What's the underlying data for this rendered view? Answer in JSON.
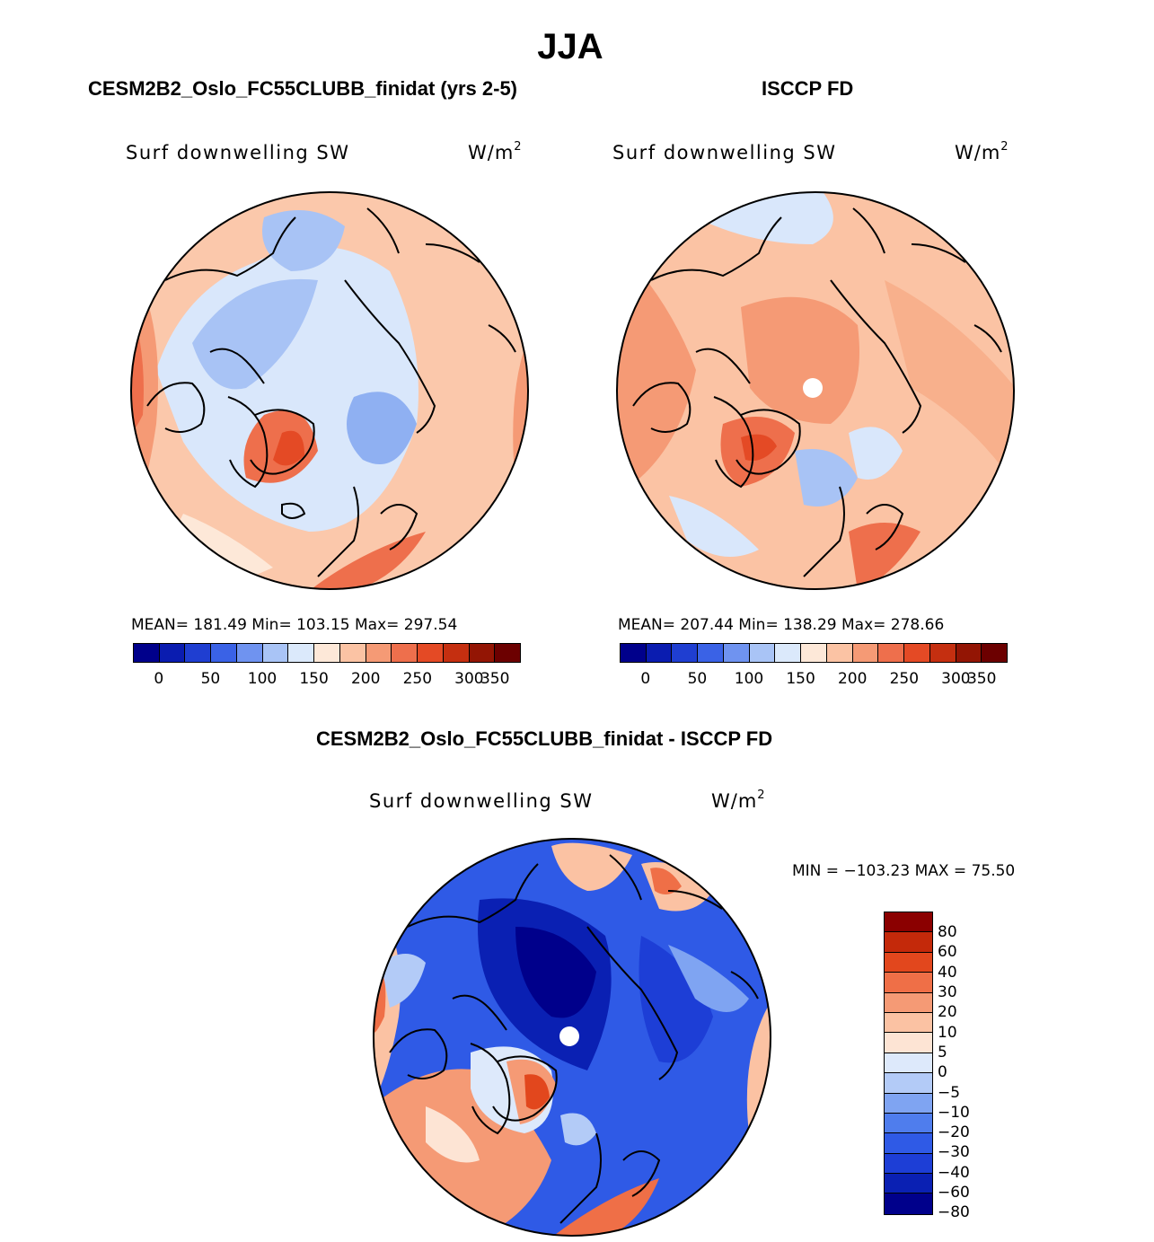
{
  "figure": {
    "title": "JJA",
    "colors": {
      "levels_palette": [
        "#00008b",
        "#0a1cb0",
        "#1f3ed1",
        "#3a62e6",
        "#6f93f0",
        "#a9c4f6",
        "#dbe9fb",
        "#fde8d8",
        "#fbc3a4",
        "#f59a75",
        "#ee6f4c",
        "#e44a25",
        "#c52f10",
        "#931504",
        "#6c0000"
      ],
      "diff_palette": [
        "#00008b",
        "#0a20b3",
        "#1d3ed6",
        "#2f5ae6",
        "#4f7ded",
        "#7fa4f2",
        "#b3cbf7",
        "#dde9fb",
        "#fde4d4",
        "#fbc2a3",
        "#f59a75",
        "#ef6f47",
        "#e2471d",
        "#c4290a",
        "#8b0000"
      ]
    },
    "panels": [
      {
        "title": "CESM2B2_Oslo_FC55CLUBB_finidat (yrs 2-5)",
        "variable": "Surf downwelling SW",
        "units_base": "W/m",
        "units_exp": "2",
        "stats": "MEAN= 181.49   Min= 103.15   Max= 297.54",
        "colorbar_ticks": [
          "0",
          "50",
          "100",
          "150",
          "200",
          "250",
          "300",
          "350"
        ]
      },
      {
        "title": "ISCCP FD",
        "variable": "Surf downwelling SW",
        "units_base": "W/m",
        "units_exp": "2",
        "stats": "MEAN= 207.44   Min= 138.29   Max= 278.66",
        "colorbar_ticks": [
          "0",
          "50",
          "100",
          "150",
          "200",
          "250",
          "300",
          "350"
        ]
      },
      {
        "title": "CESM2B2_Oslo_FC55CLUBB_finidat - ISCCP FD",
        "variable": "Surf downwelling SW",
        "units_base": "W/m",
        "units_exp": "2",
        "stats": "MIN = −103.23 MAX =   75.50",
        "colorbar_ticks": [
          "80",
          "60",
          "40",
          "30",
          "20",
          "10",
          "5",
          "0",
          "−5",
          "−10",
          "−20",
          "−30",
          "−40",
          "−60",
          "−80"
        ]
      }
    ]
  }
}
